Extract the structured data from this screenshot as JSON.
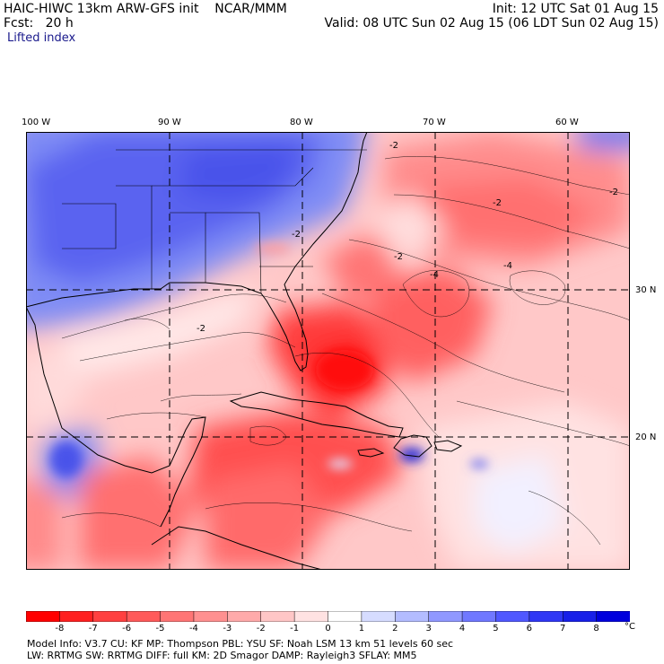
{
  "header": {
    "title": "HAIC-HIWC 13km ARW-GFS init    NCAR/MMM",
    "forecast": "Fcst:   20 h",
    "init": "Init: 12 UTC Sat 01 Aug 15",
    "valid": "Valid: 08 UTC Sun 02 Aug 15 (06 LDT Sun 02 Aug 15)",
    "field": "Lifted index"
  },
  "map": {
    "lon_labels": [
      "100 W",
      "90 W",
      "80 W",
      "70 W",
      "60 W"
    ],
    "lat_labels": [
      "30 N",
      "20 N"
    ],
    "contour_labels": [
      "-2",
      "-2",
      "-2",
      "-2",
      "-4",
      "-4",
      "-2",
      "-2"
    ]
  },
  "colorbar": {
    "ticks": [
      "-8",
      "-7",
      "-6",
      "-5",
      "-4",
      "-3",
      "-2",
      "-1",
      "0",
      "1",
      "2",
      "3",
      "4",
      "5",
      "6",
      "7",
      "8"
    ],
    "unit": "°C",
    "colors": [
      "#ff0000",
      "#ff2020",
      "#ff4040",
      "#ff5a5a",
      "#ff7575",
      "#ff9090",
      "#ffaaaa",
      "#ffc6c6",
      "#ffe2e2",
      "#ffffff",
      "#d6dcff",
      "#b3bcff",
      "#9098ff",
      "#7078ff",
      "#5058ff",
      "#3038f5",
      "#1820e8",
      "#0000dd"
    ]
  },
  "model_info": {
    "line1": "Model Info: V3.7      CU: KF      MP: Thompson     PBL: YSU        SF: Noah LSM       13 km     51 levels   60 sec",
    "line2": "          LW: RRTMG     SW: RRTMG   DIFF: full    KM: 2D Smagor DAMP: Rayleigh3  SFLAY: MM5"
  }
}
